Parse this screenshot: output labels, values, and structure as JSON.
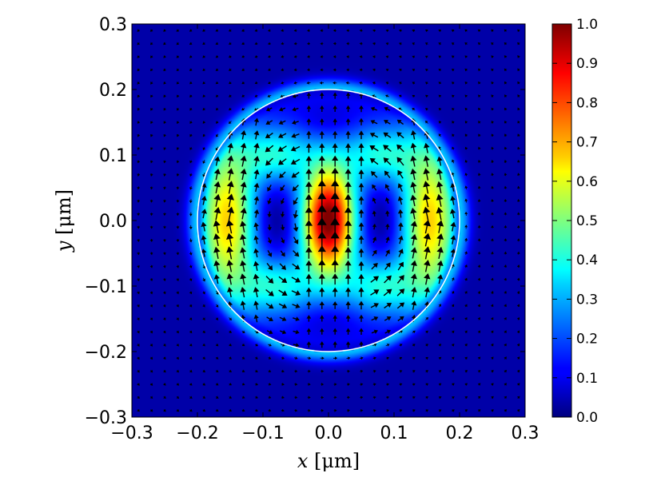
{
  "chart_data": {
    "type": "heatmap",
    "title": "",
    "xlabel": {
      "var": "x",
      "unit": "[μm]"
    },
    "ylabel": {
      "var": "y",
      "unit": "[μm]"
    },
    "xlim": [
      -0.3,
      0.3
    ],
    "ylim": [
      -0.3,
      0.3
    ],
    "x_ticks": [
      "−0.3",
      "−0.2",
      "−0.1",
      "0.0",
      "0.1",
      "0.2",
      "0.3"
    ],
    "y_ticks": [
      "−0.3",
      "−0.2",
      "−0.1",
      "0.0",
      "0.1",
      "0.2",
      "0.3"
    ],
    "colormap": "jet",
    "colorbar": {
      "range": [
        0.0,
        1.0
      ],
      "ticks": [
        "0.0",
        "0.1",
        "0.2",
        "0.3",
        "0.4",
        "0.5",
        "0.6",
        "0.7",
        "0.8",
        "0.9",
        "1.0"
      ]
    },
    "circle_boundary": {
      "center": [
        0.0,
        0.0
      ],
      "radius": 0.2,
      "color": "#ffffff"
    },
    "field_overlay": "quiver",
    "intensity_peaks": [
      {
        "x": 0.0,
        "y": 0.0,
        "value": 1.0
      },
      {
        "x": -0.155,
        "y": 0.0,
        "value": 0.68
      },
      {
        "x": 0.155,
        "y": 0.0,
        "value": 0.68
      },
      {
        "x": -0.08,
        "y": 0.1,
        "value": 0.4
      },
      {
        "x": 0.08,
        "y": 0.1,
        "value": 0.4
      },
      {
        "x": -0.08,
        "y": -0.1,
        "value": 0.4
      },
      {
        "x": 0.08,
        "y": -0.1,
        "value": 0.4
      }
    ],
    "intensity_minima": [
      {
        "x": -0.08,
        "y": 0.0,
        "value": 0.1
      },
      {
        "x": 0.08,
        "y": 0.0,
        "value": 0.1
      },
      {
        "x": 0.0,
        "y": 0.15,
        "value": 0.15
      },
      {
        "x": 0.0,
        "y": -0.15,
        "value": 0.15
      }
    ]
  }
}
